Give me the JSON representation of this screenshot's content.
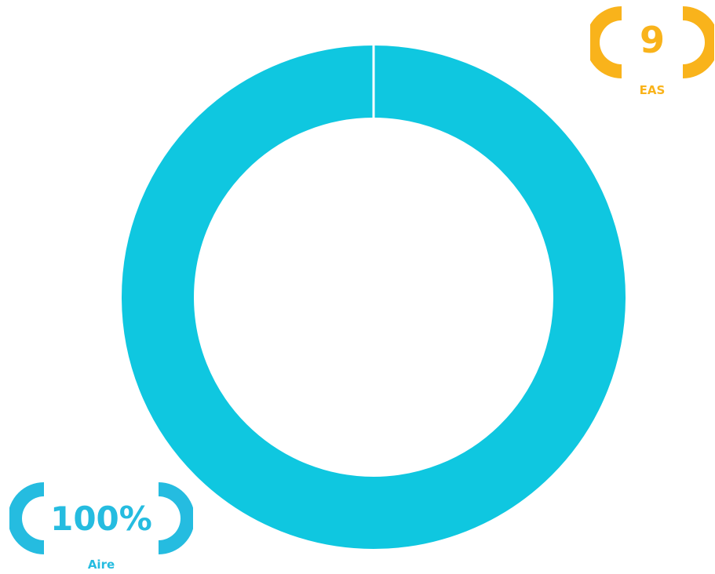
{
  "chart_data": {
    "type": "pie",
    "variant": "donut",
    "categories": [
      "Aire"
    ],
    "values": [
      100
    ],
    "colors": [
      "#0fc7e0"
    ]
  },
  "badges": {
    "eas": {
      "value": "9",
      "label": "EAS",
      "color": "#f9b31b"
    },
    "air": {
      "value": "100%",
      "label": "Aire",
      "color": "#25bce0"
    }
  }
}
